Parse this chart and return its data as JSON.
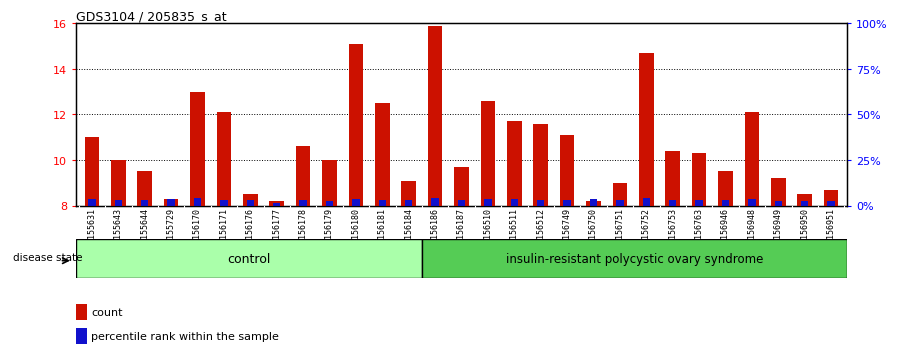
{
  "title": "GDS3104 / 205835_s_at",
  "samples": [
    "GSM155631",
    "GSM155643",
    "GSM155644",
    "GSM155729",
    "GSM156170",
    "GSM156171",
    "GSM156176",
    "GSM156177",
    "GSM156178",
    "GSM156179",
    "GSM156180",
    "GSM156181",
    "GSM156184",
    "GSM156186",
    "GSM156187",
    "GSM156510",
    "GSM156511",
    "GSM156512",
    "GSM156749",
    "GSM156750",
    "GSM156751",
    "GSM156752",
    "GSM156753",
    "GSM156763",
    "GSM156946",
    "GSM156948",
    "GSM156949",
    "GSM156950",
    "GSM156951"
  ],
  "count_values": [
    11.0,
    10.0,
    9.5,
    8.3,
    13.0,
    12.1,
    8.5,
    8.2,
    10.6,
    10.0,
    15.1,
    12.5,
    9.1,
    15.9,
    9.7,
    12.6,
    11.7,
    11.6,
    11.1,
    8.2,
    9.0,
    14.7,
    10.4,
    10.3,
    9.5,
    12.1,
    9.2,
    8.5,
    8.7
  ],
  "percentile_values": [
    8.3,
    8.25,
    8.25,
    8.3,
    8.35,
    8.25,
    8.25,
    8.1,
    8.25,
    8.2,
    8.3,
    8.25,
    8.25,
    8.35,
    8.25,
    8.3,
    8.3,
    8.25,
    8.25,
    8.3,
    8.25,
    8.35,
    8.25,
    8.25,
    8.25,
    8.3,
    8.2,
    8.2,
    8.2
  ],
  "control_count": 13,
  "ylim_left": [
    8,
    16
  ],
  "ylim_right": [
    0,
    100
  ],
  "yticks_left": [
    8,
    10,
    12,
    14,
    16
  ],
  "yticks_right": [
    0,
    25,
    50,
    75,
    100
  ],
  "bar_color_red": "#cc1100",
  "bar_color_blue": "#1111cc",
  "control_color": "#aaffaa",
  "disease_color": "#55cc55",
  "tick_bg_color": "#cccccc",
  "plot_bg_color": "#ffffff",
  "legend_count_label": "count",
  "legend_pct_label": "percentile rank within the sample",
  "disease_state_label": "disease state",
  "control_label": "control",
  "disease_label": "insulin-resistant polycystic ovary syndrome"
}
